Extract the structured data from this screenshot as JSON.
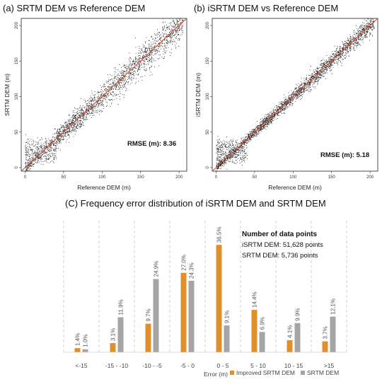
{
  "chart_data": [
    {
      "type": "scatter",
      "title": "(a) SRTM DEM vs Reference DEM",
      "xlabel": "Reference DEM (m)",
      "ylabel": "SRTM DEM (m)",
      "xlim": [
        -5,
        210
      ],
      "ylim": [
        -5,
        210
      ],
      "xticks": [
        "0",
        "50",
        "100",
        "150",
        "200"
      ],
      "yticks": [
        "0",
        "50",
        "100",
        "150",
        "200"
      ],
      "annotation": "RMSE (m): 8.36",
      "reference_line": "1:1",
      "point_color": "#000000",
      "line_color": "#d64a2a",
      "grid": false
    },
    {
      "type": "scatter",
      "title": "(b) iSRTM DEM vs Reference DEM",
      "xlabel": "Reference DEM (m)",
      "ylabel": "iSRTM DEM (m)",
      "xlim": [
        -5,
        210
      ],
      "ylim": [
        -5,
        210
      ],
      "xticks": [
        "0",
        "50",
        "100",
        "150",
        "200"
      ],
      "yticks": [
        "0",
        "50",
        "100",
        "150",
        "200"
      ],
      "annotation": "RMSE (m): 5.18",
      "reference_line": "1:1",
      "point_color": "#000000",
      "line_color": "#d64a2a",
      "grid": false
    },
    {
      "type": "bar",
      "title": "(C) Frequency error distribution of  iSRTM DEM and SRTM DEM",
      "xlabel": "Error (m)",
      "categories": [
        "<-15",
        "-15 - -10",
        "-10 - -5",
        "-5 - 0",
        "0 - 5",
        "5 - 10",
        "10 - 15",
        ">15"
      ],
      "series": [
        {
          "name": "Improved SRTM DEM",
          "color": "#e0902a",
          "values": [
            1.4,
            3.1,
            9.7,
            27.0,
            36.5,
            14.4,
            4.1,
            3.7
          ],
          "labels": [
            "1.4%",
            "3.1%",
            "9.7%",
            "27.0%",
            "36.5%",
            "14.4%",
            "4.1%",
            "3.7%"
          ]
        },
        {
          "name": "SRTM DEM",
          "color": "#a5a5a5",
          "values": [
            1.0,
            11.9,
            24.9,
            24.3,
            9.1,
            6.9,
            9.9,
            12.1
          ],
          "labels": [
            "1.0%",
            "11.9%",
            "24.9%",
            "24.3%",
            "9.1%",
            "6.9%",
            "9.9%",
            "12.1%"
          ]
        }
      ],
      "ylim": [
        0,
        38
      ],
      "grid": "vertical dashed separators",
      "legend": "bottom-right",
      "notes": {
        "heading": "Number of data points",
        "line1": "iSRTM DEM: 51,628 points",
        "line2": "SRTM DEM: 5,736 points"
      }
    }
  ]
}
